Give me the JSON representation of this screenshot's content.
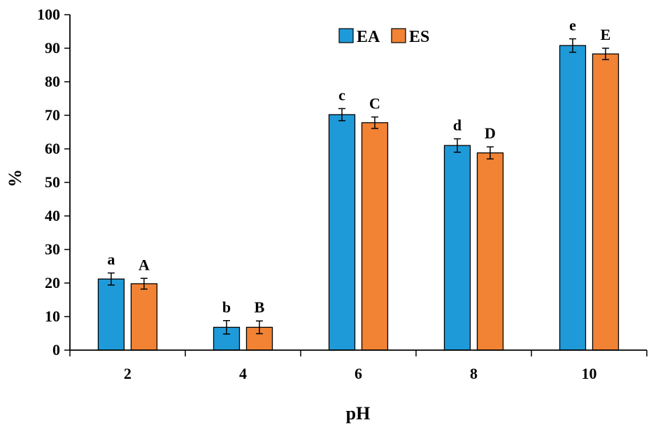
{
  "chart_data": {
    "type": "bar",
    "title": "",
    "xlabel": "pH",
    "ylabel": "%",
    "ylim": [
      0,
      100
    ],
    "yticks": [
      0,
      10,
      20,
      30,
      40,
      50,
      60,
      70,
      80,
      90,
      100
    ],
    "categories": [
      "2",
      "4",
      "6",
      "8",
      "10"
    ],
    "legend_position": "top-center",
    "grid": false,
    "series": [
      {
        "name": "EA",
        "color": "#1f9ad8",
        "values": [
          21.2,
          6.8,
          70.2,
          61.0,
          90.8
        ],
        "errors": [
          1.8,
          2.0,
          1.8,
          2.0,
          2.0
        ],
        "letters": [
          "a",
          "b",
          "c",
          "d",
          "e"
        ]
      },
      {
        "name": "ES",
        "color": "#f28335",
        "values": [
          19.8,
          6.8,
          67.8,
          58.8,
          88.3
        ],
        "errors": [
          1.6,
          1.9,
          1.7,
          1.8,
          1.7
        ],
        "letters": [
          "A",
          "B",
          "C",
          "D",
          "E"
        ]
      }
    ]
  }
}
